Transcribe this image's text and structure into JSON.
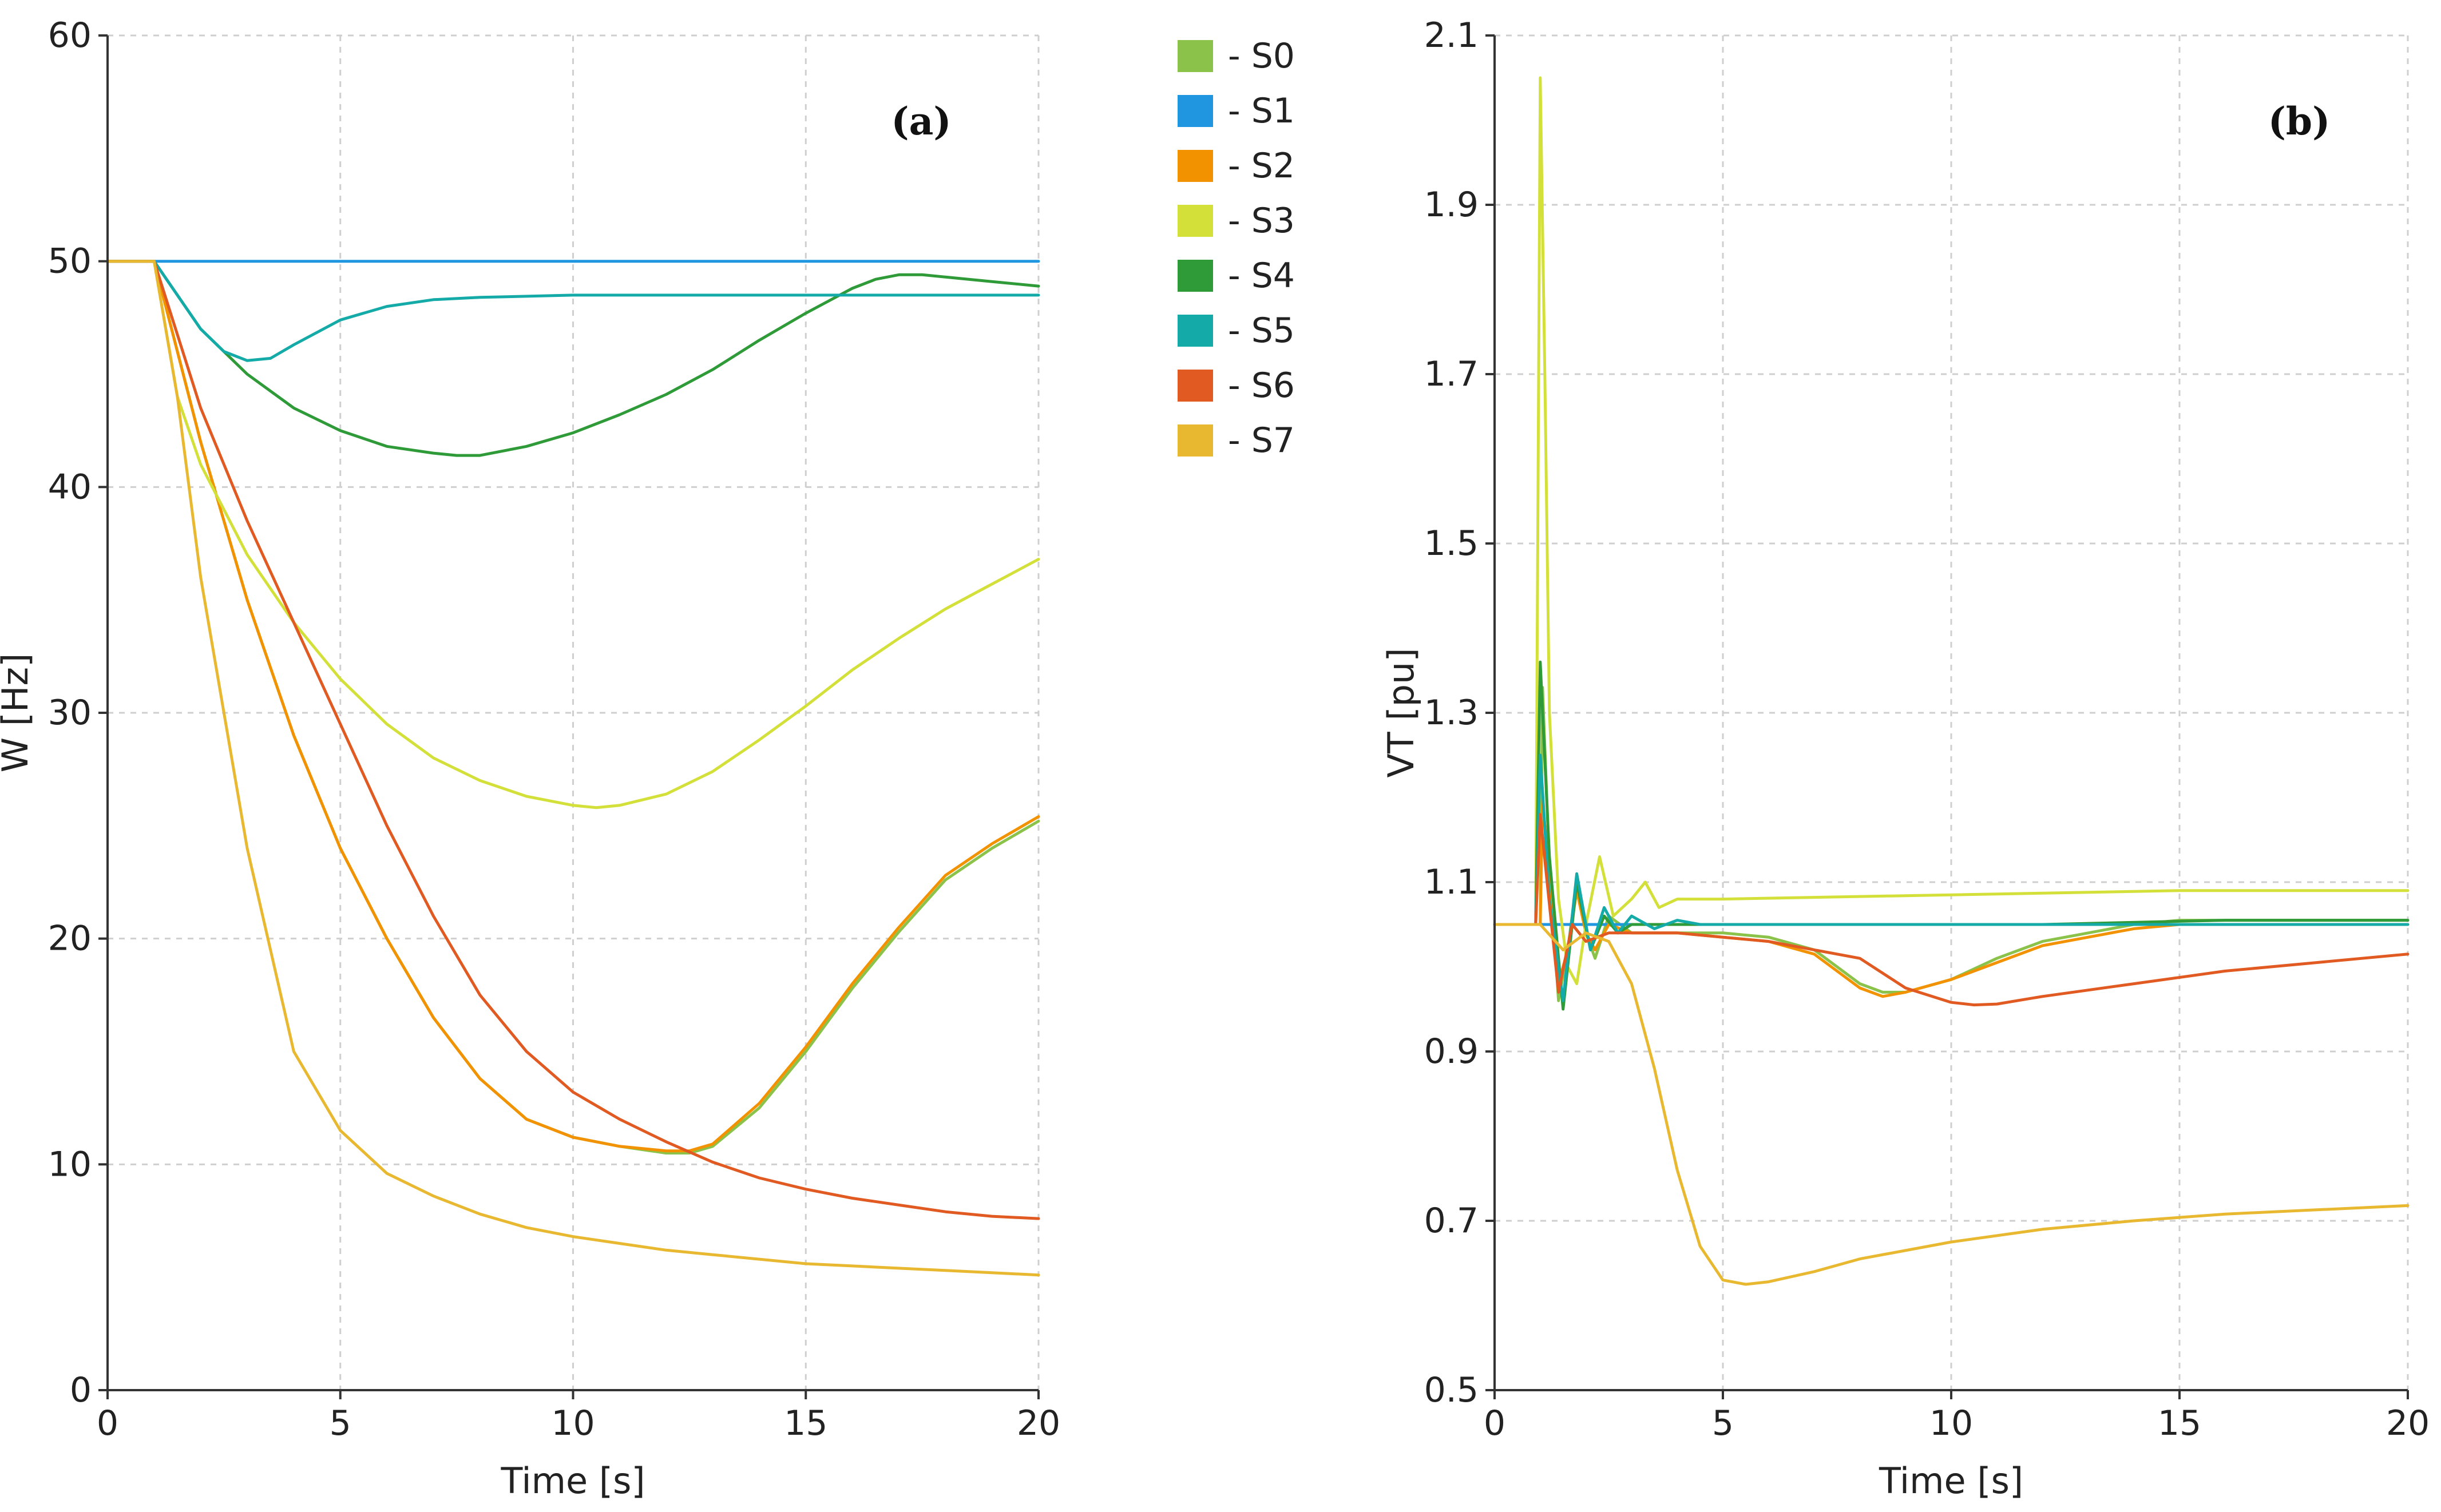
{
  "colors": {
    "S0": "#8bc34a",
    "S1": "#2196e0",
    "S2": "#f39200",
    "S3": "#d4e03a",
    "S4": "#2e9a38",
    "S5": "#14aaa8",
    "S6": "#e05a22",
    "S7": "#e8b830"
  },
  "legend": {
    "entries": [
      {
        "name": "S0",
        "label": "- S0"
      },
      {
        "name": "S1",
        "label": "- S1"
      },
      {
        "name": "S2",
        "label": "- S2"
      },
      {
        "name": "S3",
        "label": "- S3"
      },
      {
        "name": "S4",
        "label": "- S4"
      },
      {
        "name": "S5",
        "label": "- S5"
      },
      {
        "name": "S6",
        "label": "- S6"
      },
      {
        "name": "S7",
        "label": "- S7"
      }
    ],
    "placement": "between panels, top"
  },
  "chart_data": [
    {
      "type": "line",
      "panel_label": "(a)",
      "xlabel": "Time [s]",
      "ylabel": "W [Hz]",
      "xlim": [
        0,
        20
      ],
      "ylim": [
        0,
        60
      ],
      "xticks": [
        0,
        5,
        10,
        15,
        20
      ],
      "yticks": [
        0,
        10,
        20,
        30,
        40,
        50,
        60
      ],
      "grid": true,
      "series": [
        {
          "name": "S0",
          "x": [
            0,
            1,
            2,
            3,
            4,
            5,
            6,
            7,
            8,
            9,
            10,
            11,
            12,
            12.5,
            13,
            14,
            15,
            16,
            17,
            18,
            19,
            20
          ],
          "y": [
            50,
            50,
            42,
            35,
            29,
            24,
            20,
            16.5,
            13.8,
            12,
            11.2,
            10.8,
            10.5,
            10.5,
            10.8,
            12.5,
            15,
            17.8,
            20.3,
            22.6,
            24,
            25.2
          ]
        },
        {
          "name": "S1",
          "x": [
            0,
            5,
            10,
            15,
            20
          ],
          "y": [
            50,
            50,
            50,
            50,
            50
          ]
        },
        {
          "name": "S2",
          "x": [
            0,
            1,
            2,
            3,
            4,
            5,
            6,
            7,
            8,
            9,
            10,
            11,
            12,
            12.5,
            13,
            14,
            15,
            16,
            17,
            18,
            19,
            20
          ],
          "y": [
            50,
            50,
            42,
            35,
            29,
            24,
            20,
            16.5,
            13.8,
            12,
            11.2,
            10.8,
            10.6,
            10.6,
            10.9,
            12.7,
            15.2,
            18,
            20.5,
            22.8,
            24.2,
            25.4
          ]
        },
        {
          "name": "S3",
          "x": [
            0,
            1,
            1.5,
            2,
            3,
            4,
            5,
            6,
            7,
            8,
            9,
            10,
            10.5,
            11,
            12,
            13,
            14,
            15,
            16,
            17,
            18,
            19,
            20
          ],
          "y": [
            50,
            50,
            44,
            41,
            37,
            34,
            31.5,
            29.5,
            28,
            27,
            26.3,
            25.9,
            25.8,
            25.9,
            26.4,
            27.4,
            28.8,
            30.3,
            31.9,
            33.3,
            34.6,
            35.7,
            36.8
          ]
        },
        {
          "name": "S4",
          "x": [
            0,
            1,
            2,
            3,
            4,
            5,
            6,
            7,
            7.5,
            8,
            9,
            10,
            11,
            12,
            13,
            14,
            15,
            16,
            16.5,
            17,
            17.5,
            18,
            19,
            20
          ],
          "y": [
            50,
            50,
            47,
            45,
            43.5,
            42.5,
            41.8,
            41.5,
            41.4,
            41.4,
            41.8,
            42.4,
            43.2,
            44.1,
            45.2,
            46.5,
            47.7,
            48.8,
            49.2,
            49.4,
            49.4,
            49.3,
            49.1,
            48.9
          ]
        },
        {
          "name": "S5",
          "x": [
            0,
            1,
            2,
            2.5,
            3,
            3.5,
            4,
            5,
            6,
            7,
            8,
            10,
            12,
            15,
            20
          ],
          "y": [
            50,
            50,
            47,
            46,
            45.6,
            45.7,
            46.3,
            47.4,
            48,
            48.3,
            48.4,
            48.5,
            48.5,
            48.5,
            48.5
          ]
        },
        {
          "name": "S6",
          "x": [
            0,
            1,
            2,
            3,
            4,
            5,
            6,
            7,
            8,
            9,
            10,
            11,
            12,
            13,
            14,
            15,
            16,
            17,
            18,
            19,
            20
          ],
          "y": [
            50,
            50,
            43.5,
            38.5,
            34,
            29.5,
            25,
            21,
            17.5,
            15,
            13.2,
            12,
            11,
            10.1,
            9.4,
            8.9,
            8.5,
            8.2,
            7.9,
            7.7,
            7.6
          ]
        },
        {
          "name": "S7",
          "x": [
            0,
            1,
            1.5,
            2,
            3,
            4,
            5,
            6,
            7,
            8,
            9,
            10,
            11,
            12,
            13,
            14,
            15,
            16,
            17,
            18,
            19,
            20
          ],
          "y": [
            50,
            50,
            44,
            36,
            24,
            15,
            11.5,
            9.6,
            8.6,
            7.8,
            7.2,
            6.8,
            6.5,
            6.2,
            6,
            5.8,
            5.6,
            5.5,
            5.4,
            5.3,
            5.2,
            5.1
          ]
        }
      ]
    },
    {
      "type": "line",
      "panel_label": "(b)",
      "xlabel": "Time [s]",
      "ylabel": "VT [pu]",
      "xlim": [
        0,
        20
      ],
      "ylim": [
        0.5,
        2.1
      ],
      "xticks": [
        0,
        5,
        10,
        15,
        20
      ],
      "yticks": [
        0.5,
        0.7,
        0.9,
        1.1,
        1.3,
        1.5,
        1.7,
        1.9,
        2.1
      ],
      "grid": true,
      "series": [
        {
          "name": "S0",
          "x": [
            0,
            1,
            1.05,
            1.2,
            1.4,
            1.6,
            1.8,
            2,
            2.2,
            2.5,
            3,
            4,
            5,
            6,
            7,
            8,
            8.5,
            9,
            10,
            11,
            12,
            13,
            14,
            15,
            17,
            20
          ],
          "y": [
            1.05,
            1.05,
            1.33,
            1.12,
            0.96,
            1.02,
            1.1,
            1.04,
            1.01,
            1.06,
            1.04,
            1.04,
            1.04,
            1.035,
            1.02,
            0.98,
            0.97,
            0.97,
            0.985,
            1.01,
            1.03,
            1.04,
            1.05,
            1.055,
            1.055,
            1.055
          ]
        },
        {
          "name": "S1",
          "x": [
            0,
            20
          ],
          "y": [
            1.05,
            1.05
          ]
        },
        {
          "name": "S2",
          "x": [
            0,
            1,
            1.05,
            1.2,
            1.4,
            1.6,
            1.8,
            2,
            2.2,
            2.5,
            3,
            4,
            5,
            6,
            7,
            8,
            8.5,
            9,
            10,
            11,
            12,
            13,
            14,
            15,
            17,
            20
          ],
          "y": [
            1.05,
            1.05,
            1.2,
            1.1,
            0.98,
            1.02,
            1.09,
            1.04,
            1.02,
            1.05,
            1.04,
            1.04,
            1.035,
            1.03,
            1.015,
            0.975,
            0.965,
            0.97,
            0.985,
            1.005,
            1.025,
            1.035,
            1.045,
            1.05,
            1.05,
            1.05
          ]
        },
        {
          "name": "S3",
          "x": [
            0,
            0.9,
            1,
            1.1,
            1.2,
            1.4,
            1.6,
            1.8,
            2,
            2.3,
            2.6,
            3,
            3.3,
            3.6,
            4,
            5,
            10,
            15,
            20
          ],
          "y": [
            1.05,
            1.05,
            2.05,
            1.7,
            1.3,
            1.08,
            1.0,
            0.98,
            1.05,
            1.13,
            1.06,
            1.08,
            1.1,
            1.07,
            1.08,
            1.08,
            1.085,
            1.09,
            1.09
          ]
        },
        {
          "name": "S4",
          "x": [
            0,
            0.9,
            1,
            1.2,
            1.5,
            1.8,
            2.1,
            2.4,
            2.7,
            3,
            3.5,
            4,
            5,
            8,
            12,
            16,
            20
          ],
          "y": [
            1.05,
            1.05,
            1.36,
            1.13,
            0.95,
            1.1,
            1.02,
            1.06,
            1.04,
            1.05,
            1.05,
            1.05,
            1.05,
            1.05,
            1.05,
            1.055,
            1.055
          ]
        },
        {
          "name": "S5",
          "x": [
            0,
            0.9,
            1,
            1.2,
            1.5,
            1.8,
            2.1,
            2.4,
            2.7,
            3,
            3.5,
            4,
            4.5,
            5,
            8,
            12,
            16,
            20
          ],
          "y": [
            1.05,
            1.05,
            1.25,
            1.08,
            0.96,
            1.11,
            1.02,
            1.07,
            1.04,
            1.06,
            1.045,
            1.055,
            1.05,
            1.05,
            1.05,
            1.05,
            1.05,
            1.05
          ]
        },
        {
          "name": "S6",
          "x": [
            0,
            0.9,
            1,
            1.15,
            1.4,
            1.7,
            2,
            2.5,
            3,
            4,
            5,
            6,
            7,
            8,
            9,
            10,
            10.5,
            11,
            12,
            14,
            16,
            18,
            20
          ],
          "y": [
            1.05,
            1.05,
            1.18,
            1.1,
            0.97,
            1.05,
            1.03,
            1.04,
            1.04,
            1.04,
            1.035,
            1.03,
            1.02,
            1.01,
            0.975,
            0.958,
            0.955,
            0.956,
            0.965,
            0.98,
            0.995,
            1.005,
            1.015
          ]
        },
        {
          "name": "S7",
          "x": [
            0,
            1,
            1.5,
            2,
            2.5,
            3,
            3.5,
            4,
            4.5,
            5,
            5.5,
            6,
            7,
            8,
            10,
            12,
            14,
            16,
            18,
            20
          ],
          "y": [
            1.05,
            1.05,
            1.02,
            1.04,
            1.03,
            0.98,
            0.88,
            0.76,
            0.67,
            0.63,
            0.625,
            0.628,
            0.64,
            0.655,
            0.675,
            0.69,
            0.7,
            0.708,
            0.713,
            0.718
          ]
        }
      ]
    }
  ]
}
